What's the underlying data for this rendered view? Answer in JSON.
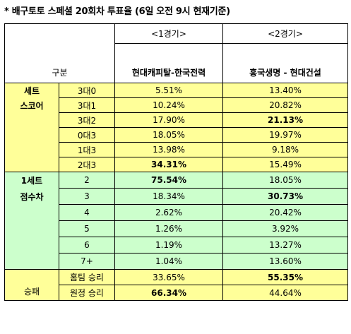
{
  "title": "* 배구토토 스페셜 20회차 투표율 (6일 오전 9시 현재기준)",
  "header": {
    "category_label": "구분",
    "game1_label": "<1경기>",
    "game2_label": "<2경기>",
    "game1_match": "현대캐피탈-한국전력",
    "game2_match": "흥국생명 - 현대건설"
  },
  "sections": {
    "set_score_line1": "세트",
    "set_score_line2": "스코어",
    "point_diff_line1": "1세트",
    "point_diff_line2": "점수차",
    "win_loss": "승패"
  },
  "rows": [
    {
      "label": "3대0",
      "g1": "5.51%",
      "g2": "13.40%",
      "g1_bold": false,
      "g2_bold": false
    },
    {
      "label": "3대1",
      "g1": "10.24%",
      "g2": "20.82%",
      "g1_bold": false,
      "g2_bold": false
    },
    {
      "label": "3대2",
      "g1": "17.90%",
      "g2": "21.13%",
      "g1_bold": false,
      "g2_bold": true
    },
    {
      "label": "0대3",
      "g1": "18.05%",
      "g2": "19.97%",
      "g1_bold": false,
      "g2_bold": false
    },
    {
      "label": "1대3",
      "g1": "13.98%",
      "g2": "9.18%",
      "g1_bold": false,
      "g2_bold": false
    },
    {
      "label": "2대3",
      "g1": "34.31%",
      "g2": "15.49%",
      "g1_bold": true,
      "g2_bold": false
    },
    {
      "label": "2",
      "g1": "75.54%",
      "g2": "18.05%",
      "g1_bold": true,
      "g2_bold": false
    },
    {
      "label": "3",
      "g1": "18.34%",
      "g2": "30.73%",
      "g1_bold": false,
      "g2_bold": true
    },
    {
      "label": "4",
      "g1": "2.62%",
      "g2": "20.42%",
      "g1_bold": false,
      "g2_bold": false
    },
    {
      "label": "5",
      "g1": "1.26%",
      "g2": "3.92%",
      "g1_bold": false,
      "g2_bold": false
    },
    {
      "label": "6",
      "g1": "1.19%",
      "g2": "13.27%",
      "g1_bold": false,
      "g2_bold": false
    },
    {
      "label": "7+",
      "g1": "1.04%",
      "g2": "13.60%",
      "g1_bold": false,
      "g2_bold": false
    },
    {
      "label": "홈팀 승리",
      "g1": "33.65%",
      "g2": "55.35%",
      "g1_bold": false,
      "g2_bold": true
    },
    {
      "label": "원정 승리",
      "g1": "66.34%",
      "g2": "44.64%",
      "g1_bold": true,
      "g2_bold": false
    }
  ],
  "colors": {
    "yellow": "#ffff99",
    "green": "#ccffcc"
  }
}
